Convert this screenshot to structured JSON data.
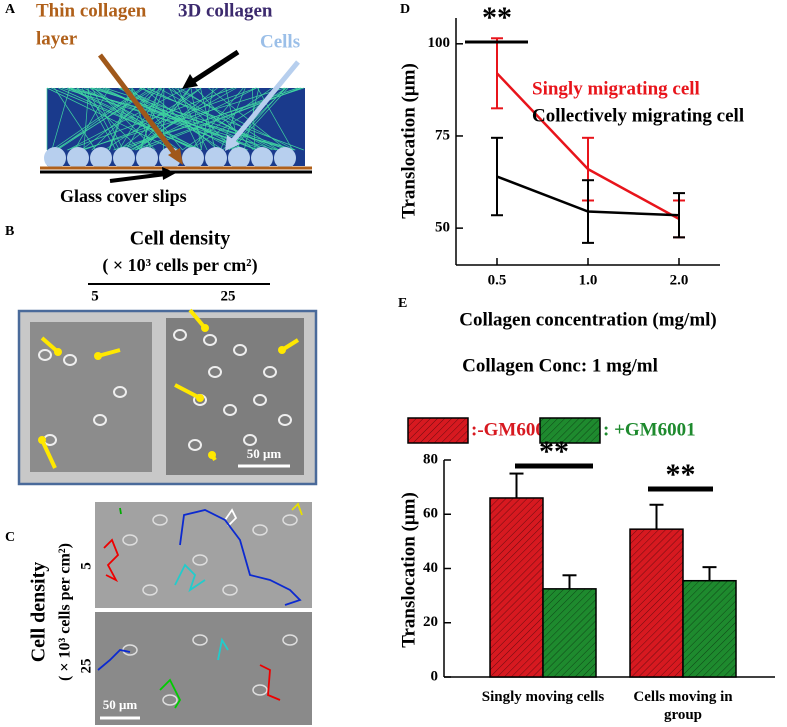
{
  "panel_labels": [
    "A",
    "B",
    "C",
    "D",
    "E"
  ],
  "panel_a": {
    "thin_collagen": [
      "Thin collagen",
      "layer"
    ],
    "collagen_3d": "3D collagen",
    "cells": "Cells",
    "glass": "Glass cover slips"
  },
  "panel_b": {
    "title": "Cell density",
    "unit": "( × 10³ cells per cm²)",
    "densities": [
      "5",
      "25"
    ],
    "scale_bar": "50 μm"
  },
  "panel_c": {
    "title": "Cell density",
    "unit": "( × 10³ cells per cm²)",
    "densities": [
      "5",
      "25"
    ],
    "scale_bar": "50 μm"
  },
  "chart_data": [
    {
      "type": "line",
      "x_label": "Collagen concentration (mg/ml)",
      "y_label": "Translocation (μm)",
      "categories": [
        "0.5",
        "1.0",
        "2.0"
      ],
      "series": [
        {
          "name": "Singly migrating cell",
          "color": "#e8141b",
          "values": [
            92,
            66,
            52.5
          ],
          "errors": [
            9.5,
            8.5,
            5
          ]
        },
        {
          "name": "Collectively migrating cell",
          "color": "#000000",
          "values": [
            64,
            54.5,
            53.5
          ],
          "errors": [
            10.5,
            8.5,
            6
          ]
        }
      ],
      "ylim": [
        40,
        107
      ],
      "yticks": [
        50,
        75,
        100
      ],
      "annotations": [
        "**"
      ],
      "legend": "upper right",
      "grid": false
    },
    {
      "type": "bar",
      "title": "Collagen Conc: 1 mg/ml",
      "y_label": "Translocation (μm)",
      "categories": [
        "Singly moving cells",
        "Cells moving in group"
      ],
      "series": [
        {
          "name": ":-GM6001",
          "color": "#d71920",
          "values": [
            66,
            54.5
          ],
          "errors": [
            9,
            9
          ]
        },
        {
          "name": ": +GM6001",
          "color": "#1e8a2e",
          "values": [
            32.5,
            35.5
          ],
          "errors": [
            5,
            5
          ]
        }
      ],
      "ylim": [
        0,
        80
      ],
      "yticks": [
        0,
        20,
        40,
        60,
        80
      ],
      "annotations": [
        "**",
        "**"
      ],
      "hatch": true,
      "legend": "top",
      "grid": false
    }
  ]
}
